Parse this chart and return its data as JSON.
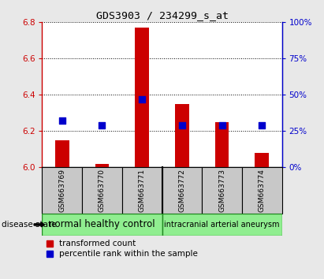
{
  "title": "GDS3903 / 234299_s_at",
  "samples": [
    "GSM663769",
    "GSM663770",
    "GSM663771",
    "GSM663772",
    "GSM663773",
    "GSM663774"
  ],
  "transformed_counts": [
    6.15,
    6.02,
    6.77,
    6.35,
    6.25,
    6.08
  ],
  "percentile_ranks": [
    32,
    29,
    47,
    29,
    29,
    29
  ],
  "ylim_left": [
    6.0,
    6.8
  ],
  "ylim_right": [
    0,
    100
  ],
  "yticks_left": [
    6.0,
    6.2,
    6.4,
    6.6,
    6.8
  ],
  "yticks_right": [
    0,
    25,
    50,
    75,
    100
  ],
  "groups": [
    {
      "label": "normal healthy control",
      "span": [
        0,
        2
      ]
    },
    {
      "label": "intracranial arterial aneurysm",
      "span": [
        3,
        5
      ]
    }
  ],
  "bar_color": "#CC0000",
  "dot_color": "#0000CC",
  "bar_baseline": 6.0,
  "bar_width": 0.35,
  "dot_size": 30,
  "grid_color": "black",
  "background_color": "#e8e8e8",
  "plot_bg": "white",
  "group_box_color": "#90EE90",
  "group_box_edge": "#228B22",
  "sample_box_color": "#c8c8c8",
  "legend_red_label": "transformed count",
  "legend_blue_label": "percentile rank within the sample",
  "disease_state_label": "disease state",
  "left_axis_color": "#CC0000",
  "right_axis_color": "#0000CC",
  "title_fontsize": 9.5,
  "tick_fontsize": 7.5,
  "sample_fontsize": 6.5,
  "group1_fontsize": 8.5,
  "group2_fontsize": 7.0,
  "legend_fontsize": 7.5
}
